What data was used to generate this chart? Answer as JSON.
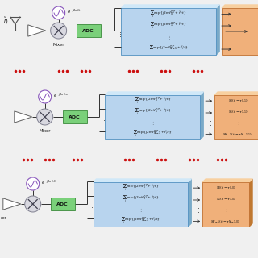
{
  "bg_color": "#f0f0f0",
  "blue_face": "#b8d4ee",
  "blue_top": "#d0e8f8",
  "blue_side": "#7aaac8",
  "blue_edge": "#5090c0",
  "orange_face": "#f0b07a",
  "orange_top": "#f8d0a0",
  "orange_side": "#c07830",
  "orange_edge": "#c07030",
  "green_face": "#5cb85c",
  "green_edge": "#3a8a3a",
  "adc_face": "#7ad07a",
  "adc_edge": "#3a8a3a",
  "mixer_face": "#d8d8e0",
  "mixer_edge": "#808090",
  "osc_color": "#8855bb",
  "arrow_color": "#303030",
  "line_color": "#303030",
  "text_color": "#101010",
  "dot_color": "#cc1010",
  "label_top": "$e^{-j2\\pi f_l t}$",
  "label_mid": "$e^{-j2\\pi f_{l,u}}$",
  "label_bot": "$e^{-j2\\pi f_{l,0}}$",
  "bf_line0": "$\\sum_i \\exp\\{j2\\pi(f_0^{DT}+\\hat{f}_i)t\\}$",
  "bf_line1": "$\\sum_i \\exp\\{j2\\pi(f_1^{DT}+\\hat{f}_i)t\\}$",
  "bf_lineN": "$\\sum_i \\exp\\{j2\\pi(f_{N-1}^{DT}+\\hat{f}_i)t\\}$",
  "s0_top": "$S_0(t-\\tau_{0,1})$",
  "s1_top": "$S_1(t-\\tau_{1,1})$",
  "sN_top": "$S_{N-1}(t-\\tau_{N-1,1})$",
  "s0_bot": "$S_0(t-\\tau_{0,0})$",
  "s1_bot": "$S_1(t-\\tau_{1,0})$",
  "sN_bot": "$S_{N-1}(t-\\tau_{N-1,0})$"
}
